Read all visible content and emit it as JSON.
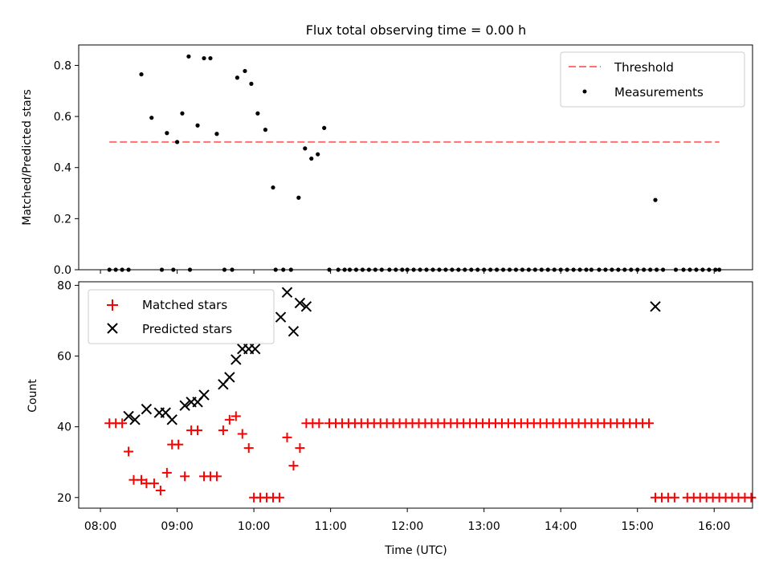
{
  "figure": {
    "title": "Flux total observing time = 0.00 h"
  },
  "chart_data": [
    {
      "type": "scatter",
      "ylabel": "Matched/Predicted stars",
      "xlim": [
        "07:43",
        "16:30"
      ],
      "ylim": [
        0,
        0.88
      ],
      "yticks": [
        0.0,
        0.2,
        0.4,
        0.6,
        0.8
      ],
      "grid": false,
      "legend_position": "top-right",
      "threshold": {
        "name": "Threshold",
        "y": 0.5,
        "x_range": [
          "08:07",
          "16:04"
        ],
        "color": "#ff7070",
        "style": "dashed"
      },
      "series": [
        {
          "name": "Measurements",
          "color": "#000000",
          "points": [
            [
              "08:07",
              0
            ],
            [
              "08:12",
              0
            ],
            [
              "08:17",
              0
            ],
            [
              "08:22",
              0
            ],
            [
              "08:32",
              0.765
            ],
            [
              "08:40",
              0.595
            ],
            [
              "08:48",
              0
            ],
            [
              "08:52",
              0.535
            ],
            [
              "08:57",
              0
            ],
            [
              "09:00",
              0.5
            ],
            [
              "09:04",
              0.612
            ],
            [
              "09:09",
              0.835
            ],
            [
              "09:10",
              0
            ],
            [
              "09:16",
              0.565
            ],
            [
              "09:21",
              0.828
            ],
            [
              "09:26",
              0.828
            ],
            [
              "09:31",
              0.532
            ],
            [
              "09:37",
              0
            ],
            [
              "09:43",
              0
            ],
            [
              "09:47",
              0.752
            ],
            [
              "09:53",
              0.778
            ],
            [
              "09:58",
              0.728
            ],
            [
              "10:03",
              0.612
            ],
            [
              "10:09",
              0.548
            ],
            [
              "10:15",
              0.322
            ],
            [
              "10:17",
              0
            ],
            [
              "10:23",
              0
            ],
            [
              "10:29",
              0
            ],
            [
              "10:35",
              0.282
            ],
            [
              "10:40",
              0.475
            ],
            [
              "10:45",
              0.435
            ],
            [
              "10:50",
              0.452
            ],
            [
              "10:55",
              0.555
            ],
            [
              "10:59",
              0
            ],
            [
              "11:06",
              0
            ],
            [
              "11:11",
              0
            ],
            [
              "11:15",
              0
            ],
            [
              "11:20",
              0
            ],
            [
              "11:25",
              0
            ],
            [
              "11:30",
              0
            ],
            [
              "11:35",
              0
            ],
            [
              "11:40",
              0
            ],
            [
              "11:46",
              0
            ],
            [
              "11:51",
              0
            ],
            [
              "11:56",
              0
            ],
            [
              "12:00",
              0
            ],
            [
              "12:05",
              0
            ],
            [
              "12:10",
              0
            ],
            [
              "12:15",
              0
            ],
            [
              "12:20",
              0
            ],
            [
              "12:25",
              0
            ],
            [
              "12:30",
              0
            ],
            [
              "12:35",
              0
            ],
            [
              "12:40",
              0
            ],
            [
              "12:45",
              0
            ],
            [
              "12:50",
              0
            ],
            [
              "12:55",
              0
            ],
            [
              "13:00",
              0
            ],
            [
              "13:05",
              0
            ],
            [
              "13:10",
              0
            ],
            [
              "13:15",
              0
            ],
            [
              "13:20",
              0
            ],
            [
              "13:25",
              0
            ],
            [
              "13:30",
              0
            ],
            [
              "13:35",
              0
            ],
            [
              "13:40",
              0
            ],
            [
              "13:45",
              0
            ],
            [
              "13:50",
              0
            ],
            [
              "13:55",
              0
            ],
            [
              "14:00",
              0
            ],
            [
              "14:05",
              0
            ],
            [
              "14:10",
              0
            ],
            [
              "14:15",
              0
            ],
            [
              "14:20",
              0
            ],
            [
              "14:24",
              0
            ],
            [
              "14:30",
              0
            ],
            [
              "14:35",
              0
            ],
            [
              "14:40",
              0
            ],
            [
              "14:45",
              0
            ],
            [
              "14:50",
              0
            ],
            [
              "14:55",
              0
            ],
            [
              "15:00",
              0
            ],
            [
              "15:05",
              0
            ],
            [
              "15:10",
              0
            ],
            [
              "15:14",
              0.273
            ],
            [
              "15:15",
              0
            ],
            [
              "15:20",
              0
            ],
            [
              "15:30",
              0
            ],
            [
              "15:36",
              0
            ],
            [
              "15:41",
              0
            ],
            [
              "15:46",
              0
            ],
            [
              "15:51",
              0
            ],
            [
              "15:56",
              0
            ],
            [
              "16:01",
              0
            ],
            [
              "16:04",
              0
            ]
          ]
        }
      ]
    },
    {
      "type": "scatter",
      "xlabel": "Time (UTC)",
      "ylabel": "Count",
      "xlim": [
        "07:43",
        "16:30"
      ],
      "ylim": [
        17,
        81
      ],
      "yticks": [
        20,
        40,
        60,
        80
      ],
      "xticks": [
        "08:00",
        "09:00",
        "10:00",
        "11:00",
        "12:00",
        "13:00",
        "14:00",
        "15:00",
        "16:00"
      ],
      "grid": false,
      "legend_position": "top-left",
      "series": [
        {
          "name": "Matched stars",
          "marker": "+",
          "color": "#ff0000",
          "points": [
            [
              "08:07",
              41
            ],
            [
              "08:12",
              41
            ],
            [
              "08:17",
              41
            ],
            [
              "08:22",
              33
            ],
            [
              "08:26",
              25
            ],
            [
              "08:32",
              25
            ],
            [
              "08:36",
              24
            ],
            [
              "08:42",
              24
            ],
            [
              "08:47",
              22
            ],
            [
              "08:52",
              27
            ],
            [
              "08:56",
              35
            ],
            [
              "09:01",
              35
            ],
            [
              "09:06",
              26
            ],
            [
              "09:11",
              39
            ],
            [
              "09:16",
              39
            ],
            [
              "09:21",
              26
            ],
            [
              "09:26",
              26
            ],
            [
              "09:31",
              26
            ],
            [
              "09:36",
              39
            ],
            [
              "09:41",
              42
            ],
            [
              "09:46",
              43
            ],
            [
              "09:51",
              38
            ],
            [
              "09:56",
              34
            ],
            [
              "10:00",
              20
            ],
            [
              "10:05",
              20
            ],
            [
              "10:10",
              20
            ],
            [
              "10:15",
              20
            ],
            [
              "10:20",
              20
            ],
            [
              "10:26",
              37
            ],
            [
              "10:31",
              29
            ],
            [
              "10:36",
              34
            ],
            [
              "10:41",
              41
            ],
            [
              "10:46",
              41
            ],
            [
              "10:51",
              41
            ],
            [
              "10:59",
              41
            ],
            [
              "11:04",
              41
            ],
            [
              "11:09",
              41
            ],
            [
              "11:14",
              41
            ],
            [
              "11:19",
              41
            ],
            [
              "11:24",
              41
            ],
            [
              "11:29",
              41
            ],
            [
              "11:34",
              41
            ],
            [
              "11:39",
              41
            ],
            [
              "11:44",
              41
            ],
            [
              "11:49",
              41
            ],
            [
              "11:54",
              41
            ],
            [
              "11:59",
              41
            ],
            [
              "12:04",
              41
            ],
            [
              "12:09",
              41
            ],
            [
              "12:14",
              41
            ],
            [
              "12:19",
              41
            ],
            [
              "12:24",
              41
            ],
            [
              "12:29",
              41
            ],
            [
              "12:34",
              41
            ],
            [
              "12:39",
              41
            ],
            [
              "12:44",
              41
            ],
            [
              "12:49",
              41
            ],
            [
              "12:54",
              41
            ],
            [
              "12:59",
              41
            ],
            [
              "13:04",
              41
            ],
            [
              "13:09",
              41
            ],
            [
              "13:14",
              41
            ],
            [
              "13:19",
              41
            ],
            [
              "13:24",
              41
            ],
            [
              "13:29",
              41
            ],
            [
              "13:34",
              41
            ],
            [
              "13:39",
              41
            ],
            [
              "13:44",
              41
            ],
            [
              "13:49",
              41
            ],
            [
              "13:54",
              41
            ],
            [
              "13:59",
              41
            ],
            [
              "14:04",
              41
            ],
            [
              "14:09",
              41
            ],
            [
              "14:14",
              41
            ],
            [
              "14:19",
              41
            ],
            [
              "14:24",
              41
            ],
            [
              "14:29",
              41
            ],
            [
              "14:34",
              41
            ],
            [
              "14:39",
              41
            ],
            [
              "14:44",
              41
            ],
            [
              "14:49",
              41
            ],
            [
              "14:54",
              41
            ],
            [
              "14:59",
              41
            ],
            [
              "15:04",
              41
            ],
            [
              "15:09",
              41
            ],
            [
              "15:14",
              20
            ],
            [
              "15:19",
              20
            ],
            [
              "15:24",
              20
            ],
            [
              "15:29",
              20
            ],
            [
              "15:39",
              20
            ],
            [
              "15:44",
              20
            ],
            [
              "15:49",
              20
            ],
            [
              "15:54",
              20
            ],
            [
              "15:59",
              20
            ],
            [
              "16:04",
              20
            ],
            [
              "16:09",
              20
            ],
            [
              "16:14",
              20
            ],
            [
              "16:19",
              20
            ],
            [
              "16:24",
              20
            ],
            [
              "16:29",
              20
            ]
          ]
        },
        {
          "name": "Predicted stars",
          "marker": "x",
          "color": "#000000",
          "points": [
            [
              "08:22",
              43
            ],
            [
              "08:27",
              42
            ],
            [
              "08:36",
              45
            ],
            [
              "08:46",
              44
            ],
            [
              "08:51",
              44
            ],
            [
              "08:56",
              42
            ],
            [
              "09:06",
              46
            ],
            [
              "09:11",
              47
            ],
            [
              "09:16",
              47
            ],
            [
              "09:21",
              49
            ],
            [
              "09:36",
              52
            ],
            [
              "09:41",
              54
            ],
            [
              "09:46",
              59
            ],
            [
              "09:51",
              62
            ],
            [
              "09:56",
              62
            ],
            [
              "10:01",
              62
            ],
            [
              "10:21",
              71
            ],
            [
              "10:26",
              78
            ],
            [
              "10:31",
              67
            ],
            [
              "10:36",
              75
            ],
            [
              "10:41",
              74
            ],
            [
              "15:14",
              74
            ]
          ]
        }
      ]
    }
  ]
}
